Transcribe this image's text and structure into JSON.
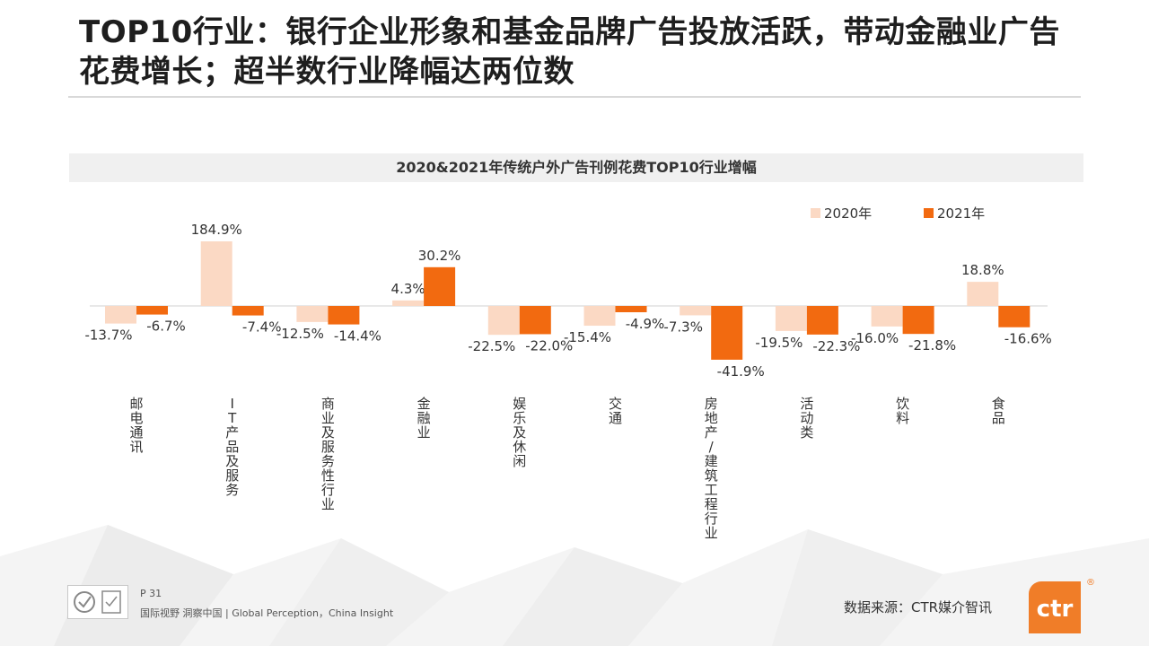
{
  "title": "TOP10行业：银行企业形象和基金品牌广告投放活跃，带动金融业广告花费增长；超半数行业降幅达两位数",
  "chart_data": {
    "type": "bar",
    "title": "2020&2021年传统户外广告刊例花费TOP10行业增幅",
    "categories": [
      "邮电通讯",
      "IT产品及服务",
      "商业及服务性行业",
      "金融业",
      "娱乐及休闲",
      "交通",
      "房地产/建筑工程行业",
      "活动类",
      "饮料",
      "食品"
    ],
    "series": [
      {
        "name": "2020年",
        "values": [
          -13.7,
          184.9,
          -12.5,
          4.3,
          -22.5,
          -15.4,
          -7.3,
          -19.5,
          -16.0,
          18.8
        ],
        "labels": [
          "-13.7%",
          "184.9%",
          "-12.5%",
          "4.3%",
          "-22.5%",
          "-15.4%",
          "-7.3%",
          "-19.5%",
          "-16.0%",
          "18.8%"
        ]
      },
      {
        "name": "2021年",
        "values": [
          -6.7,
          -7.4,
          -14.4,
          30.2,
          -22.0,
          -4.9,
          -41.9,
          -22.3,
          -21.8,
          -16.6
        ],
        "labels": [
          "-6.7%",
          "-7.4%",
          "-14.4%",
          "30.2%",
          "-22.0%",
          "-4.9%",
          "-41.9%",
          "-22.3%",
          "-21.8%",
          "-16.6%"
        ]
      }
    ],
    "colors": [
      "#fbd9c4",
      "#f26a10"
    ],
    "legend_position": "top-right",
    "grid": false
  },
  "footer": {
    "page": "P 31",
    "tagline": "国际视野 洞察中国 | Global Perception，China Insight",
    "source": "数据来源：CTR媒介智讯",
    "logo_text": "ctr",
    "logo_mark": "®"
  }
}
